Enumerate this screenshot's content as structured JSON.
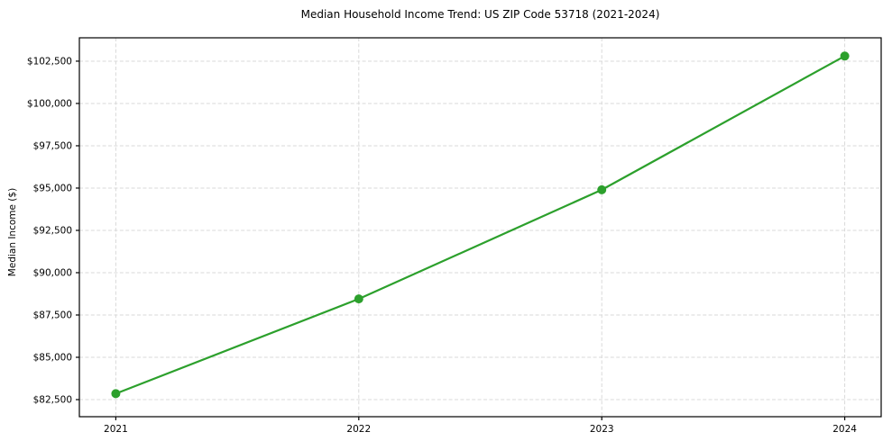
{
  "chart_data": {
    "type": "line",
    "title": "Median Household Income Trend: US ZIP Code 53718 (2021-2024)",
    "xlabel": "",
    "ylabel": "Median Income ($)",
    "x": [
      2021,
      2022,
      2023,
      2024
    ],
    "series": [
      {
        "name": "Median Household Income",
        "values": [
          82850,
          88450,
          94900,
          102800
        ],
        "color": "#2ca02c",
        "marker": "circle",
        "marker_radius": 5,
        "line_width": 2.2
      }
    ],
    "xticks": [
      2021,
      2022,
      2023,
      2024
    ],
    "xtick_labels": [
      "2021",
      "2022",
      "2023",
      "2024"
    ],
    "yticks": [
      82500,
      85000,
      87500,
      90000,
      92500,
      95000,
      97500,
      100000,
      102500
    ],
    "ytick_labels": [
      "$82,500",
      "$85,000",
      "$87,500",
      "$90,000",
      "$92,500",
      "$95,000",
      "$97,500",
      "$100,000",
      "$102,500"
    ],
    "xlim": [
      2020.85,
      2024.15
    ],
    "ylim": [
      81490,
      103880
    ],
    "grid": true,
    "grid_style": "dashed",
    "grid_color": "#d9d9d9",
    "spine_color": "#000000",
    "tick_color": "#000000",
    "tick_label_color": "#000000",
    "background": "#ffffff",
    "legend": null
  }
}
